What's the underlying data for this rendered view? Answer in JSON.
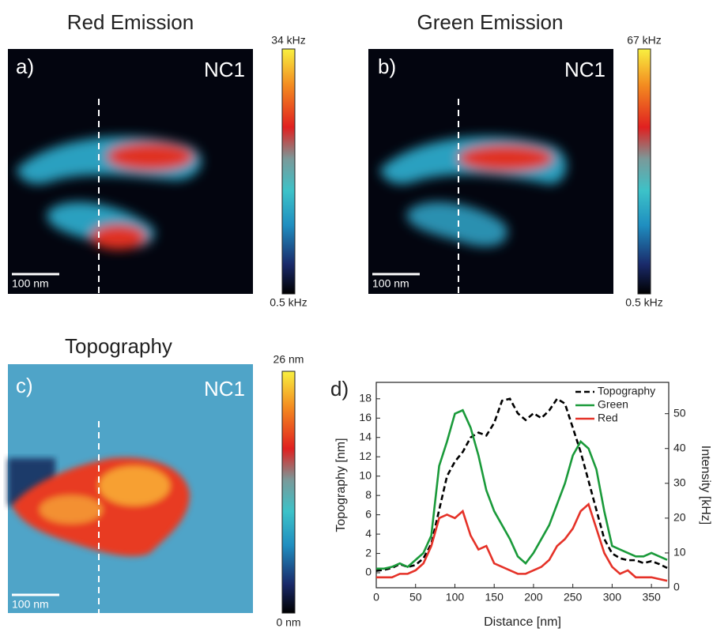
{
  "panels": [
    {
      "title": "Red Emission",
      "label": "a)",
      "tag": "NC1",
      "scale_bar": "100 nm",
      "colorbar_max": "34 kHz",
      "colorbar_min": "0.5 kHz"
    },
    {
      "title": "Green Emission",
      "label": "b)",
      "tag": "NC1",
      "scale_bar": "100 nm",
      "colorbar_max": "67 kHz",
      "colorbar_min": "0.5 kHz"
    },
    {
      "title": "Topography",
      "label": "c)",
      "tag": "NC1",
      "scale_bar": "100 nm",
      "colorbar_max": "26 nm",
      "colorbar_min": "0 nm"
    }
  ],
  "chart_data": {
    "type": "line",
    "panel_label": "d)",
    "x_label": "Distance [nm]",
    "y_label": "Topography [nm]",
    "y2_label": "Intensity [kHz]",
    "x": [
      0,
      10,
      20,
      30,
      40,
      50,
      60,
      70,
      80,
      90,
      100,
      110,
      120,
      130,
      140,
      150,
      160,
      170,
      180,
      190,
      200,
      210,
      220,
      230,
      240,
      250,
      260,
      270,
      280,
      290,
      300,
      310,
      320,
      330,
      340,
      350,
      360,
      370
    ],
    "series": [
      {
        "name": "Topography",
        "color": "#000000",
        "linestyle": "dashed",
        "values": [
          0.2,
          0.3,
          0.5,
          0.9,
          0.6,
          0.8,
          1.5,
          3,
          6.5,
          10,
          11.5,
          12.5,
          14,
          14.5,
          14.2,
          15.5,
          17.8,
          18,
          16.5,
          15.8,
          16.5,
          16,
          16.8,
          18,
          17.5,
          15,
          12.5,
          9.5,
          6.5,
          3.5,
          2,
          1.5,
          1.3,
          1.3,
          1.0,
          1.2,
          0.9,
          0.5
        ]
      },
      {
        "name": "Green",
        "color": "#1a9a3a",
        "linestyle": "solid",
        "axis": "y2",
        "values": [
          5.5,
          5.5,
          6,
          7,
          6,
          8,
          10,
          15,
          35,
          42,
          50,
          51,
          46,
          38,
          28,
          22,
          18,
          14,
          9,
          7,
          10,
          14,
          18,
          24,
          30,
          38,
          42,
          40,
          34,
          22,
          12,
          11,
          10,
          9,
          9,
          10,
          9,
          8
        ]
      },
      {
        "name": "Red",
        "color": "#e53228",
        "linestyle": "solid",
        "axis": "y2",
        "values": [
          3,
          3,
          3,
          4,
          4,
          5,
          7,
          12,
          20,
          21,
          20,
          22,
          15,
          11,
          12,
          7,
          6,
          5,
          4,
          4,
          5,
          6,
          8,
          12,
          14,
          17,
          22,
          24,
          17,
          10,
          6,
          4,
          5,
          3,
          3,
          3,
          2.5,
          2
        ]
      }
    ],
    "xlim": [
      0,
      372
    ],
    "ylim": [
      -1.55,
      19.7
    ],
    "y2lim": [
      0,
      59
    ],
    "xticks": [
      0,
      50,
      100,
      150,
      200,
      250,
      300,
      350
    ],
    "yticks": [
      0,
      2,
      4,
      6,
      8,
      10,
      12,
      14,
      16,
      18
    ],
    "y2ticks": [
      0,
      10,
      20,
      30,
      40,
      50
    ],
    "legend": "upper right"
  }
}
